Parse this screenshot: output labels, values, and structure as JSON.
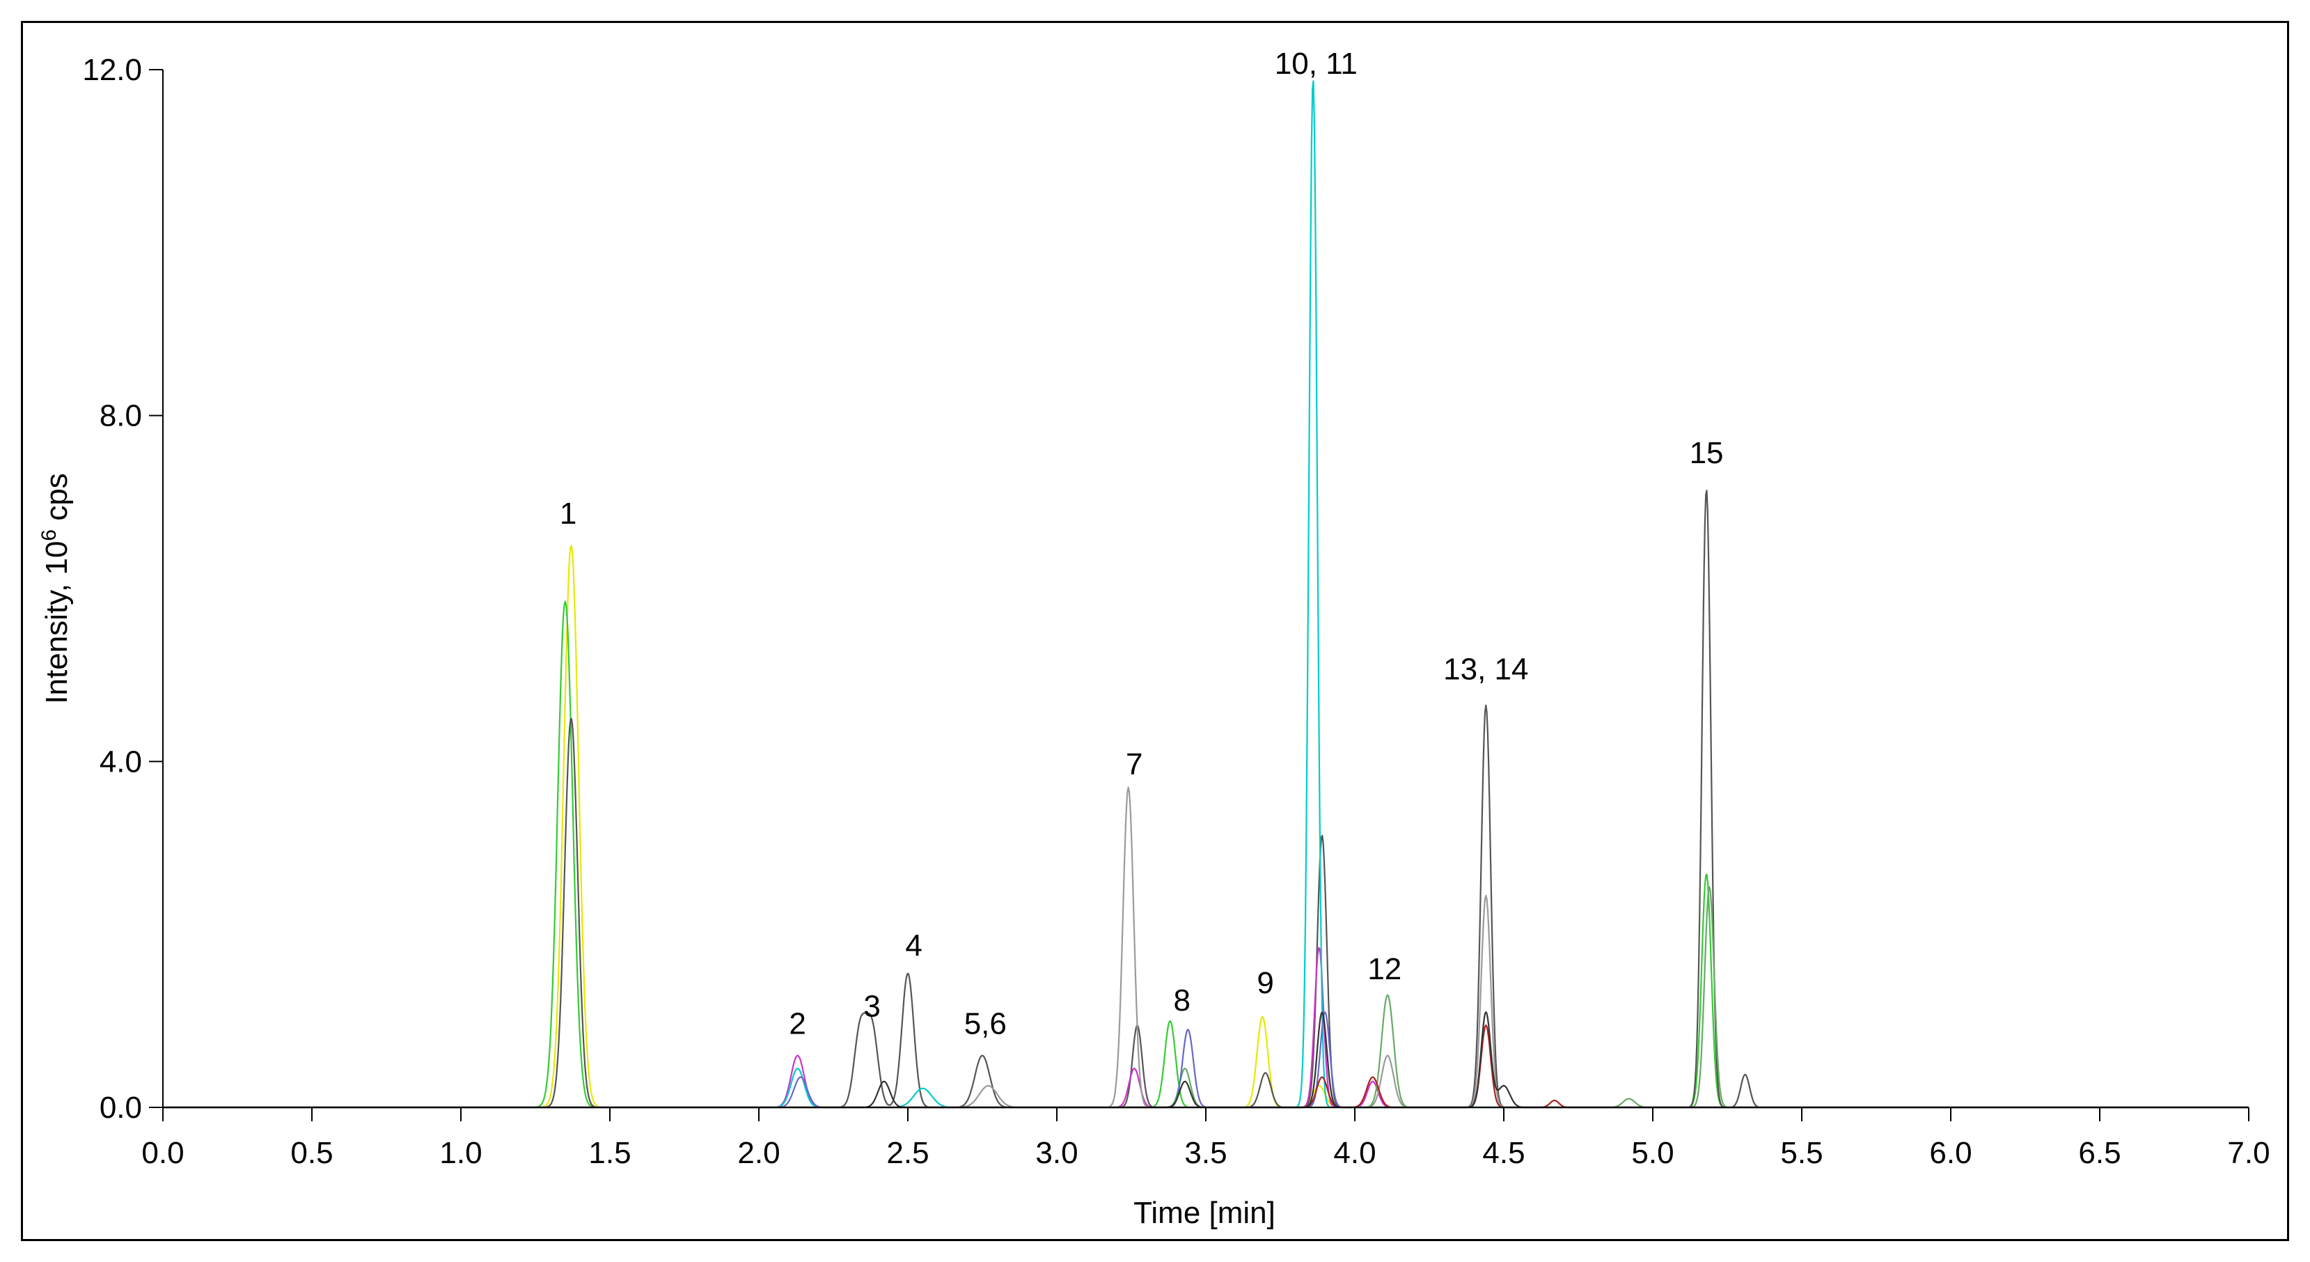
{
  "chart_data": {
    "type": "line",
    "title": "",
    "xlabel": "Time [min]",
    "ylabel_main": "Intensity, 10",
    "ylabel_sup": "6",
    "ylabel_unit": " cps",
    "xlim": [
      0,
      7
    ],
    "ylim": [
      0,
      12
    ],
    "x_ticks": [
      "0.0",
      "0.5",
      "1.0",
      "1.5",
      "2.0",
      "2.5",
      "3.0",
      "3.5",
      "4.0",
      "4.5",
      "5.0",
      "5.5",
      "6.0",
      "6.5",
      "7.0"
    ],
    "y_ticks": [
      "0.0",
      "4.0",
      "8.0",
      "12.0"
    ],
    "grid": false,
    "legend": "none",
    "annotations": [
      {
        "text": "1",
        "x": 1.36,
        "y": 6.75
      },
      {
        "text": "2",
        "x": 2.13,
        "y": 0.85
      },
      {
        "text": "3",
        "x": 2.38,
        "y": 1.05
      },
      {
        "text": "4",
        "x": 2.52,
        "y": 1.75
      },
      {
        "text": "5,6",
        "x": 2.76,
        "y": 0.85
      },
      {
        "text": "7",
        "x": 3.26,
        "y": 3.85
      },
      {
        "text": "8",
        "x": 3.42,
        "y": 1.12
      },
      {
        "text": "9",
        "x": 3.7,
        "y": 1.32
      },
      {
        "text": "10, 11",
        "x": 3.87,
        "y": 11.95
      },
      {
        "text": "12",
        "x": 4.1,
        "y": 1.48
      },
      {
        "text": "13, 14",
        "x": 4.44,
        "y": 4.95
      },
      {
        "text": "15",
        "x": 5.18,
        "y": 7.45
      }
    ],
    "series": [
      {
        "color": "#e8e800",
        "peaks": [
          [
            1.37,
            6.5,
            0.025
          ],
          [
            3.69,
            1.05,
            0.018
          ],
          [
            3.88,
            0.25,
            0.02
          ]
        ]
      },
      {
        "color": "#33cc33",
        "peaks": [
          [
            1.35,
            5.85,
            0.025
          ],
          [
            3.38,
            1.0,
            0.018
          ],
          [
            5.18,
            2.7,
            0.016
          ]
        ]
      },
      {
        "color": "#555555",
        "peaks": [
          [
            1.37,
            4.5,
            0.022
          ],
          [
            2.34,
            0.9,
            0.02
          ],
          [
            2.38,
            0.9,
            0.02
          ],
          [
            2.5,
            1.55,
            0.02
          ],
          [
            2.75,
            0.6,
            0.025
          ],
          [
            3.27,
            0.95,
            0.016
          ],
          [
            3.7,
            0.4,
            0.018
          ],
          [
            3.89,
            3.15,
            0.016
          ],
          [
            4.44,
            4.65,
            0.016
          ],
          [
            5.18,
            7.15,
            0.015
          ],
          [
            5.31,
            0.38,
            0.015
          ]
        ]
      },
      {
        "color": "#cc33cc",
        "peaks": [
          [
            2.13,
            0.6,
            0.022
          ],
          [
            3.26,
            0.45,
            0.018
          ],
          [
            3.88,
            1.85,
            0.015
          ],
          [
            4.06,
            0.3,
            0.018
          ]
        ]
      },
      {
        "color": "#00cccc",
        "peaks": [
          [
            2.13,
            0.45,
            0.022
          ],
          [
            2.55,
            0.22,
            0.03
          ],
          [
            3.86,
            11.9,
            0.014
          ]
        ]
      },
      {
        "color": "#9a9a9a",
        "peaks": [
          [
            3.24,
            3.7,
            0.018
          ],
          [
            4.44,
            2.45,
            0.016
          ],
          [
            4.11,
            0.6,
            0.02
          ],
          [
            2.77,
            0.25,
            0.03
          ]
        ]
      },
      {
        "color": "#66aa66",
        "peaks": [
          [
            4.11,
            1.3,
            0.02
          ],
          [
            3.43,
            0.45,
            0.018
          ],
          [
            5.19,
            2.55,
            0.016
          ],
          [
            4.92,
            0.1,
            0.02
          ]
        ]
      },
      {
        "color": "#6666cc",
        "peaks": [
          [
            3.44,
            0.9,
            0.018
          ],
          [
            2.14,
            0.35,
            0.022
          ],
          [
            3.9,
            1.1,
            0.016
          ]
        ]
      },
      {
        "color": "#aa2222",
        "peaks": [
          [
            4.44,
            0.95,
            0.016
          ],
          [
            4.06,
            0.35,
            0.02
          ],
          [
            3.89,
            0.35,
            0.018
          ],
          [
            4.67,
            0.08,
            0.015
          ]
        ]
      },
      {
        "color": "#333333",
        "peaks": [
          [
            4.44,
            1.1,
            0.016
          ],
          [
            3.89,
            1.1,
            0.016
          ],
          [
            3.43,
            0.3,
            0.018
          ],
          [
            2.42,
            0.3,
            0.02
          ],
          [
            4.5,
            0.25,
            0.02
          ]
        ]
      }
    ]
  }
}
